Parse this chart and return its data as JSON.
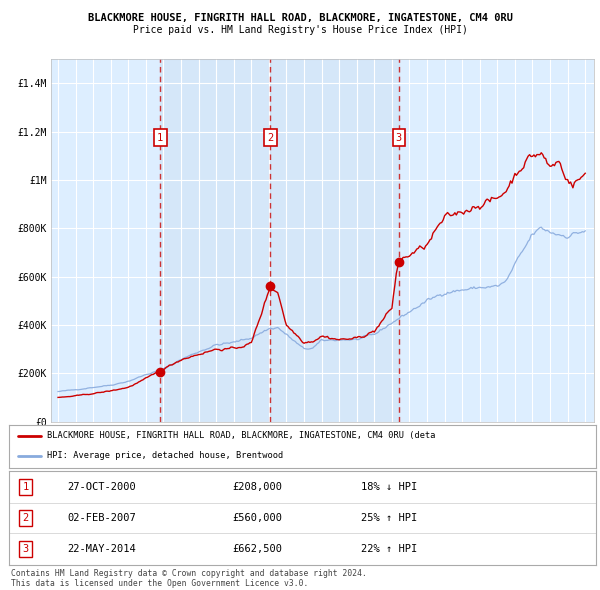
{
  "title1": "BLACKMORE HOUSE, FINGRITH HALL ROAD, BLACKMORE, INGATESTONE, CM4 0RU",
  "title2": "Price paid vs. HM Land Registry's House Price Index (HPI)",
  "legend_line1": "BLACKMORE HOUSE, FINGRITH HALL ROAD, BLACKMORE, INGATESTONE, CM4 0RU (deta",
  "legend_line2": "HPI: Average price, detached house, Brentwood",
  "footer1": "Contains HM Land Registry data © Crown copyright and database right 2024.",
  "footer2": "This data is licensed under the Open Government Licence v3.0.",
  "sale_markers": [
    {
      "num": 1,
      "date_str": "27-OCT-2000",
      "price": 208000,
      "x_val": 2000.82,
      "pct": "18%",
      "dir": "↓"
    },
    {
      "num": 2,
      "date_str": "02-FEB-2007",
      "price": 560000,
      "x_val": 2007.09,
      "pct": "25%",
      "dir": "↑"
    },
    {
      "num": 3,
      "date_str": "22-MAY-2014",
      "price": 662500,
      "x_val": 2014.39,
      "pct": "22%",
      "dir": "↑"
    }
  ],
  "price_line_color": "#cc0000",
  "hpi_line_color": "#88aadd",
  "marker_box_color": "#cc0000",
  "dashed_line_color": "#cc3333",
  "shade_color": "#ddeeff",
  "background_color": "#ffffff",
  "plot_bg_color": "#ddeeff",
  "ylim": [
    0,
    1500000
  ],
  "xlim_start": 1994.6,
  "xlim_end": 2025.5,
  "yticks": [
    0,
    200000,
    400000,
    600000,
    800000,
    1000000,
    1200000,
    1400000
  ],
  "ytick_labels": [
    "£0",
    "£200K",
    "£400K",
    "£600K",
    "£800K",
    "£1M",
    "£1.2M",
    "£1.4M"
  ],
  "xticks": [
    1995,
    1996,
    1997,
    1998,
    1999,
    2000,
    2001,
    2002,
    2003,
    2004,
    2005,
    2006,
    2007,
    2008,
    2009,
    2010,
    2011,
    2012,
    2013,
    2014,
    2015,
    2016,
    2017,
    2018,
    2019,
    2020,
    2021,
    2022,
    2023,
    2024,
    2025
  ]
}
